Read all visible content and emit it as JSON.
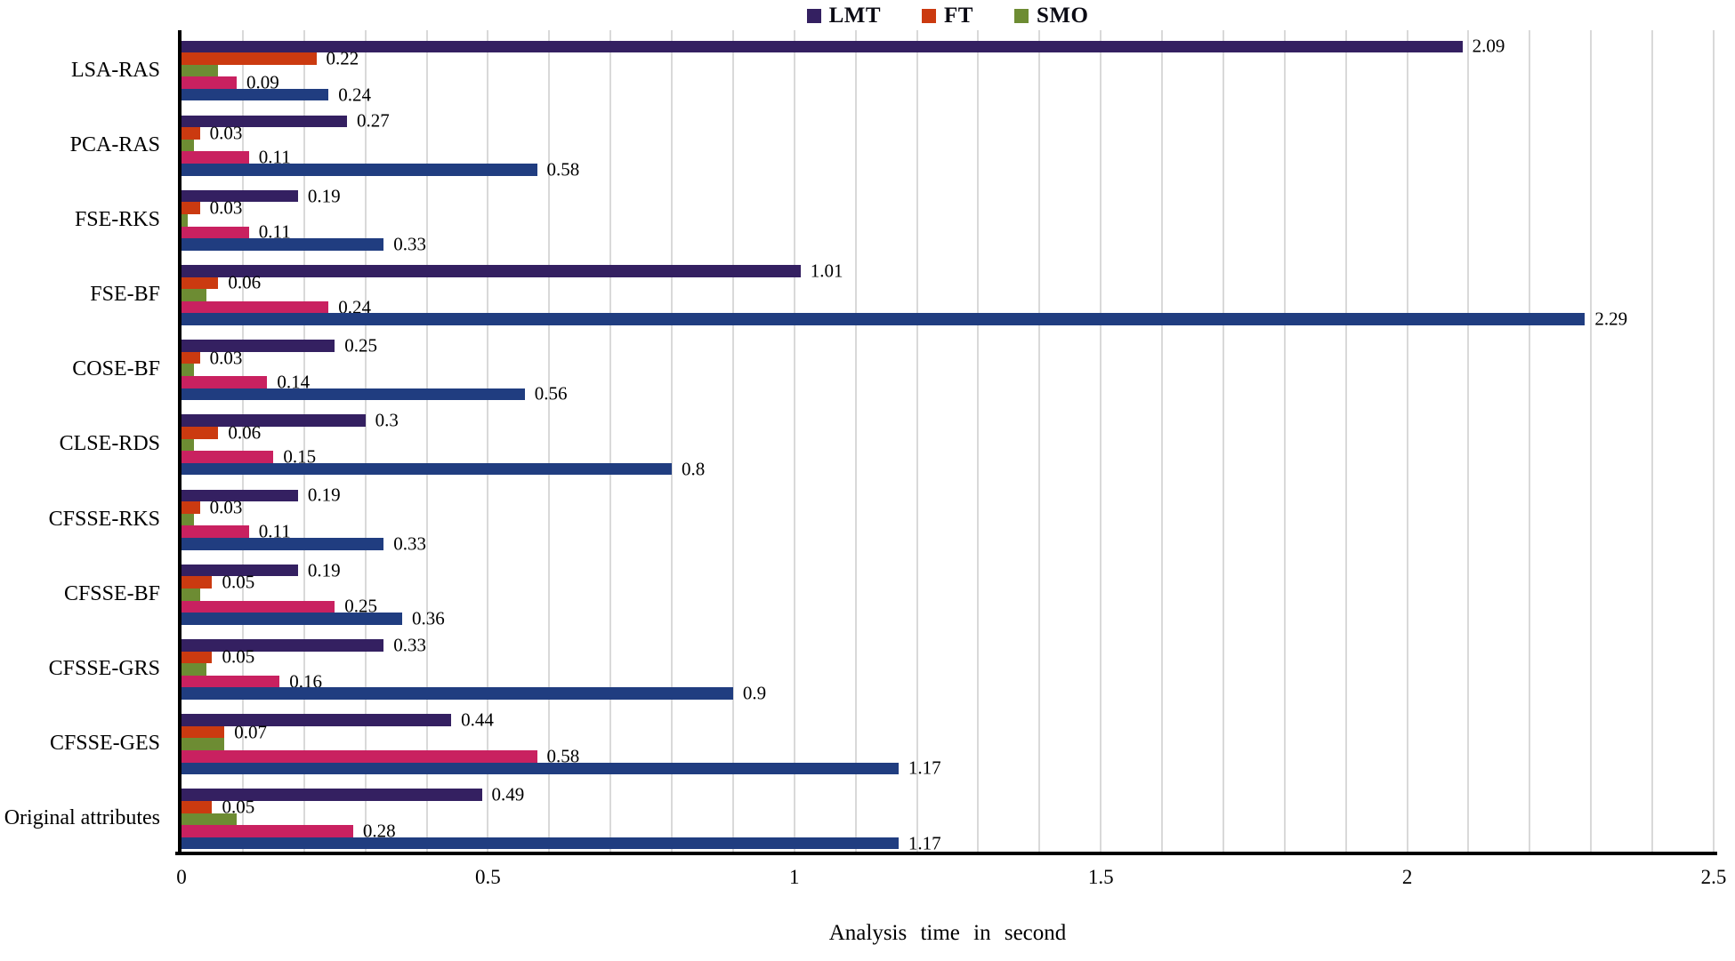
{
  "chart_data": {
    "type": "bar",
    "orientation": "horizontal",
    "title": "",
    "xlabel": "Analysis  time  in  second",
    "ylabel": "",
    "xlim": [
      0,
      2.5
    ],
    "x_tick_labels": [
      "0",
      "0.5",
      "1",
      "1.5",
      "2",
      "2.5"
    ],
    "gridline_interval": 0.1,
    "grid": "vertical-minor-lines",
    "legend_position": "top-center",
    "legend_entries": [
      "LMT",
      "FT",
      "SMO"
    ],
    "categories": [
      "LSA-RAS",
      "PCA-RAS",
      "FSE-RKS",
      "FSE-BF",
      "COSE-BF",
      "CLSE-RDS",
      "CFSSE-RKS",
      "CFSSE-BF",
      "CFSSE-GRS",
      "CFSSE-GES",
      "Original attributes"
    ],
    "series": [
      {
        "name": "LMT",
        "color": "#342061",
        "in_legend": true,
        "values": [
          2.09,
          0.27,
          0.19,
          1.01,
          0.25,
          0.3,
          0.19,
          0.19,
          0.33,
          0.44,
          0.49
        ],
        "labels": [
          "2.09",
          "0.27",
          "0.19",
          "1.01",
          "0.25",
          "0.3",
          "0.19",
          "0.19",
          "0.33",
          "0.44",
          "0.49"
        ]
      },
      {
        "name": "FT",
        "color": "#cb3a10",
        "in_legend": true,
        "values": [
          0.22,
          0.03,
          0.03,
          0.06,
          0.03,
          0.06,
          0.03,
          0.05,
          0.05,
          0.07,
          0.05
        ],
        "labels": [
          "0.22",
          "0.03",
          "0.03",
          "0.06",
          "0.03",
          "0.06",
          "0.03",
          "0.05",
          "0.05",
          "0.07",
          "0.05"
        ]
      },
      {
        "name": "SMO",
        "color": "#6d8c33",
        "in_legend": true,
        "values": [
          0.06,
          0.02,
          0.01,
          0.04,
          0.02,
          0.02,
          0.02,
          0.03,
          0.04,
          0.07,
          0.09
        ],
        "labels": [
          null,
          null,
          null,
          null,
          null,
          null,
          null,
          null,
          null,
          null,
          null
        ]
      },
      {
        "name": "series4",
        "color": "#c92160",
        "in_legend": false,
        "values": [
          0.09,
          0.11,
          0.11,
          0.24,
          0.14,
          0.15,
          0.11,
          0.25,
          0.16,
          0.58,
          0.28
        ],
        "labels": [
          "0.09",
          "0.11",
          "0.11",
          "0.24",
          "0.14",
          "0.15",
          "0.11",
          "0.25",
          "0.16",
          "0.58",
          "0.28"
        ]
      },
      {
        "name": "series5",
        "color": "#203d80",
        "in_legend": false,
        "values": [
          0.24,
          0.58,
          0.33,
          2.29,
          0.56,
          0.8,
          0.33,
          0.36,
          0.9,
          1.17,
          1.17
        ],
        "labels": [
          "0.24",
          "0.58",
          "0.33",
          "2.29",
          "0.56",
          "0.8",
          "0.33",
          "0.36",
          "0.9",
          "1.17",
          "1.17"
        ]
      }
    ]
  }
}
